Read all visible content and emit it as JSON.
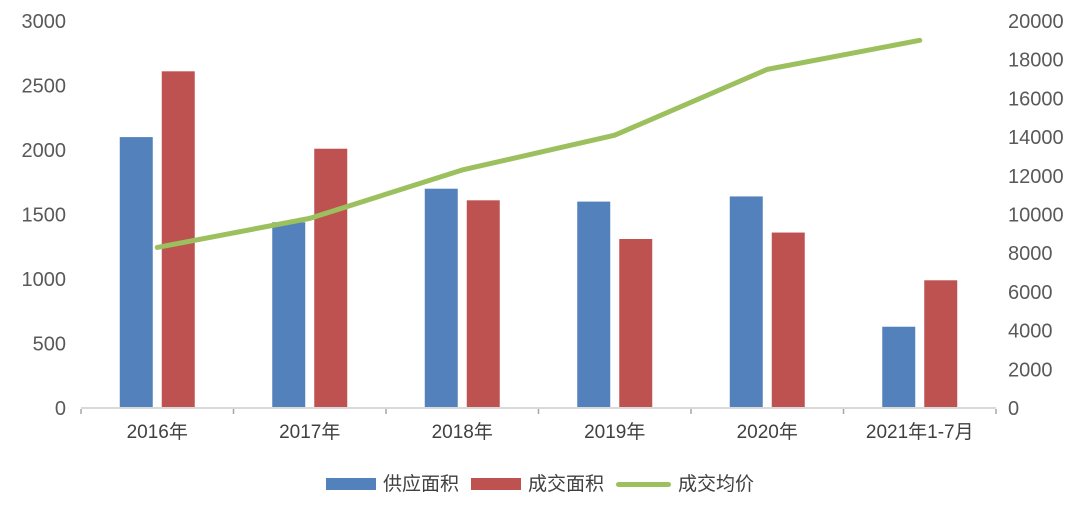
{
  "chart_data": {
    "type": "combo-bar-line",
    "title": "",
    "categories": [
      "2016年",
      "2017年",
      "2018年",
      "2019年",
      "2020年",
      "2021年1-7月"
    ],
    "series": [
      {
        "name": "供应面积",
        "key": "supply-area",
        "type": "bar",
        "axis": "left",
        "color": "#5381BC",
        "values": [
          2100,
          1440,
          1700,
          1600,
          1640,
          630
        ]
      },
      {
        "name": "成交面积",
        "key": "sold-area",
        "type": "bar",
        "axis": "left",
        "color": "#BE5250",
        "values": [
          2610,
          2010,
          1610,
          1310,
          1360,
          990
        ]
      },
      {
        "name": "成交均价",
        "key": "avg-price",
        "type": "line",
        "axis": "right",
        "color": "#9CC05E",
        "values": [
          8300,
          9800,
          12300,
          14100,
          17500,
          19000
        ]
      }
    ],
    "left_axis": {
      "min": 0,
      "max": 3000,
      "step": 500,
      "tick_labels": [
        "0",
        "500",
        "1000",
        "1500",
        "2000",
        "2500",
        "3000"
      ]
    },
    "right_axis": {
      "min": 0,
      "max": 20000,
      "step": 2000,
      "tick_labels": [
        "0",
        "2000",
        "4000",
        "6000",
        "8000",
        "10000",
        "12000",
        "14000",
        "16000",
        "18000",
        "20000"
      ]
    },
    "grid": false,
    "legend_position": "bottom"
  },
  "colors": {
    "background": "#ffffff",
    "axis_line": "#d9d9d9",
    "tick_mark": "#a6a6a6",
    "axis_text": "#595959",
    "category_text": "#404040"
  }
}
